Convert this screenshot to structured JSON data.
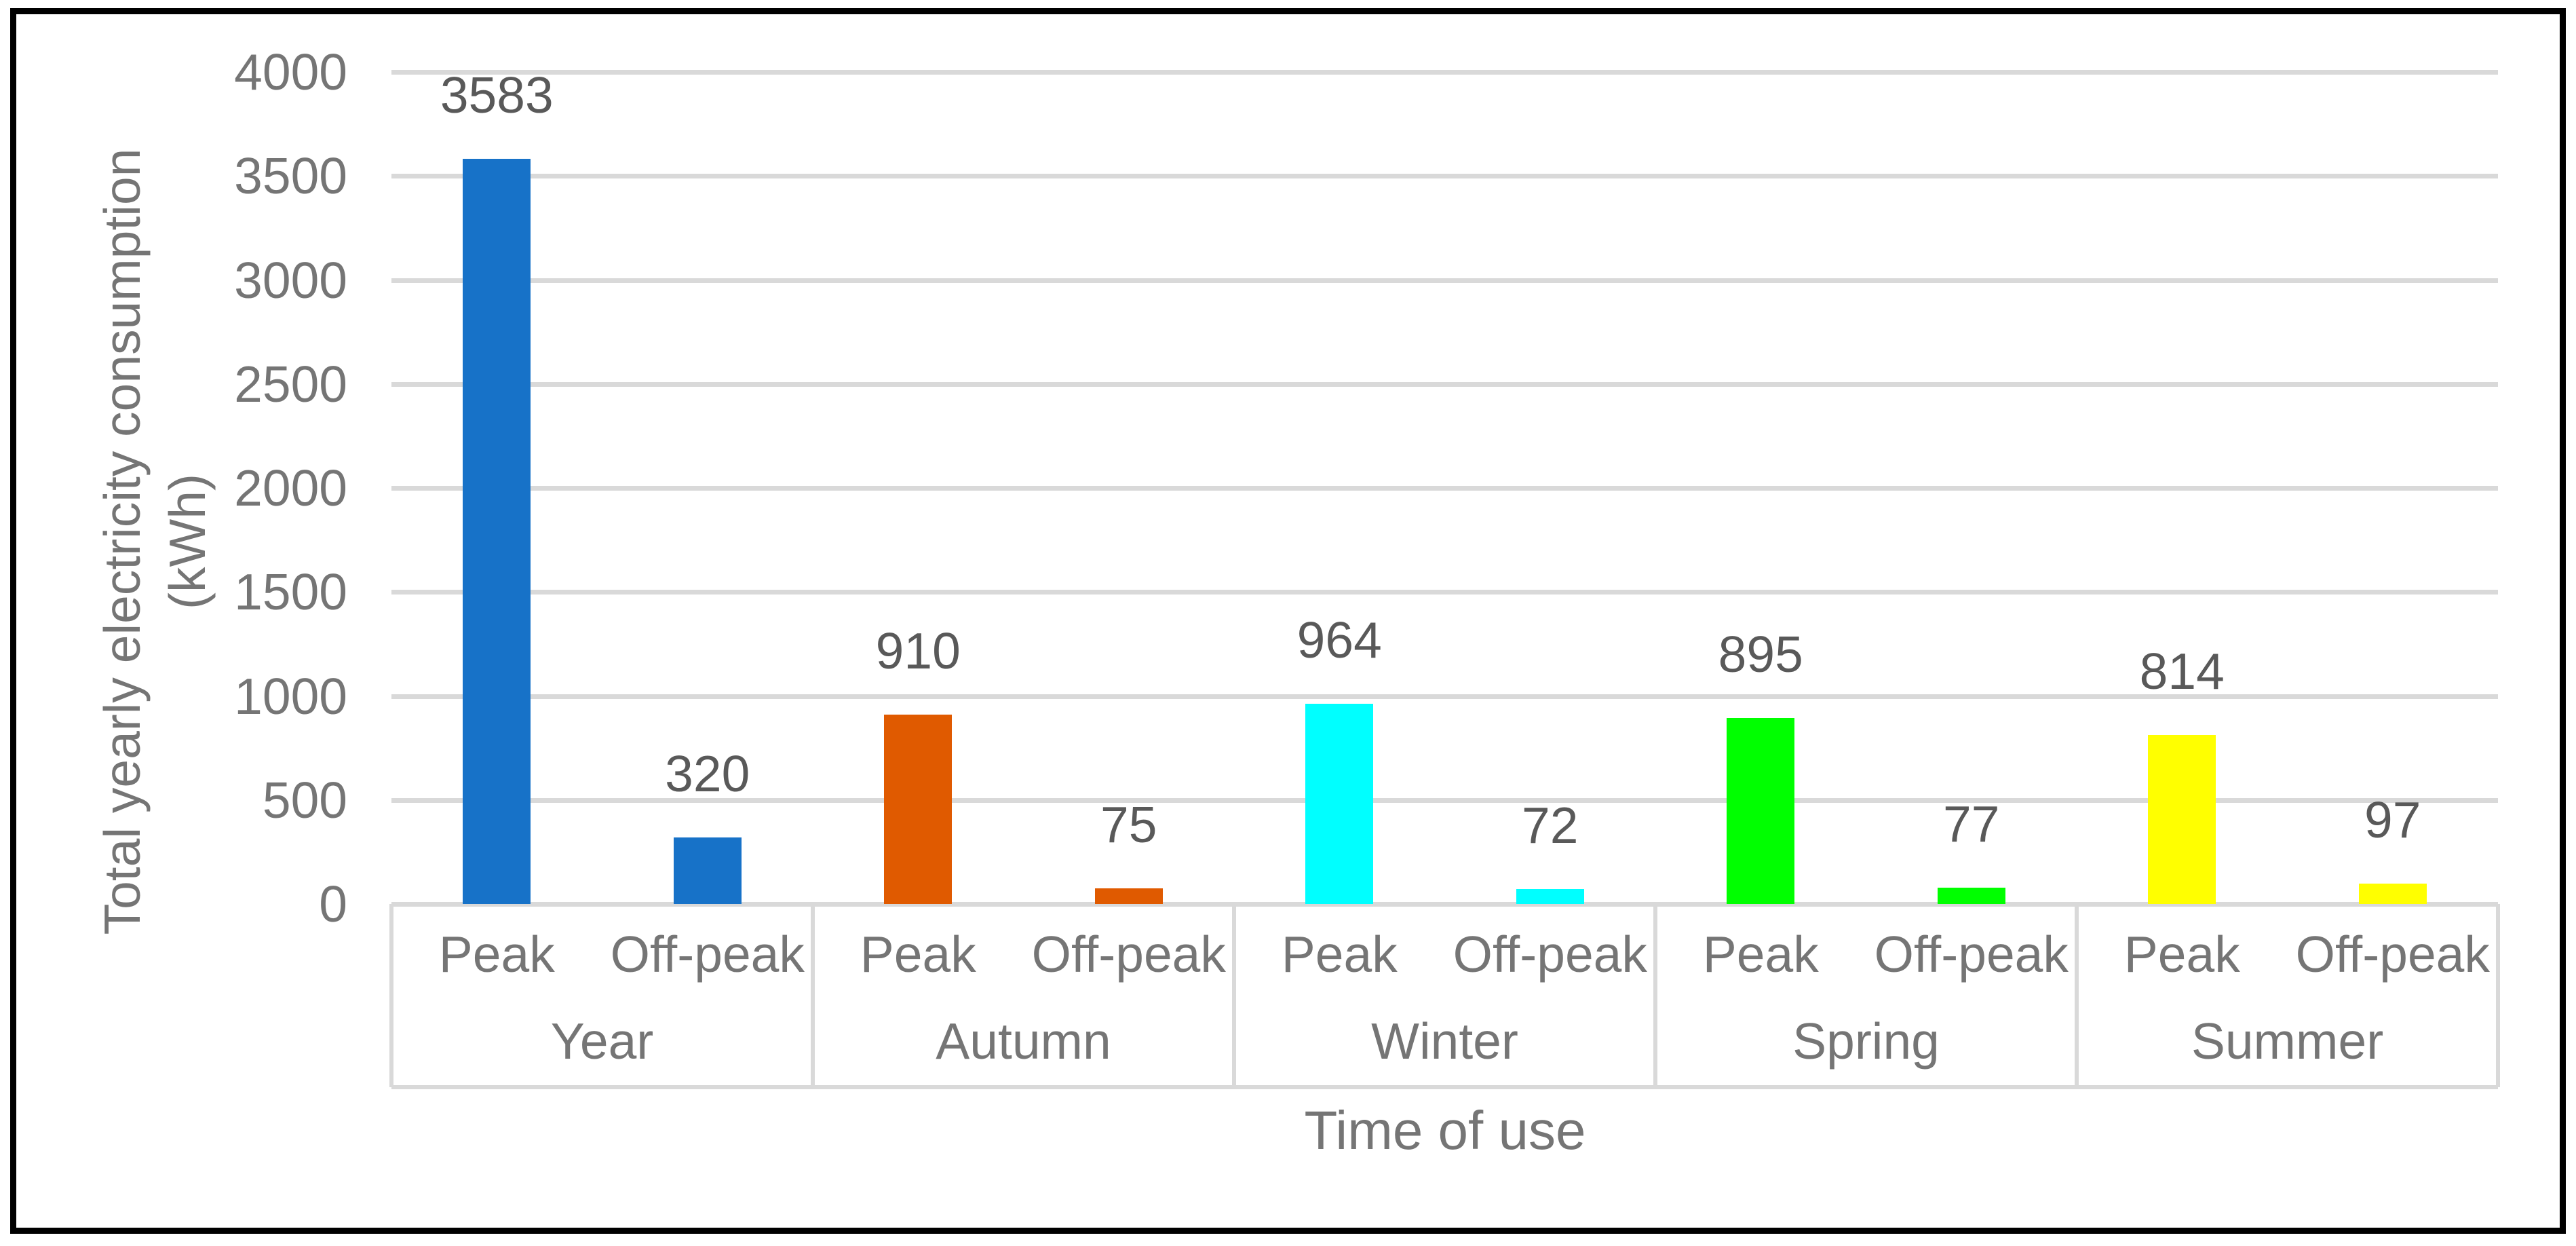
{
  "window": {
    "background_color": "#FFFFFF",
    "frame_color": "#000000"
  },
  "chart_data": {
    "type": "bar",
    "title": "",
    "xlabel": "Time of use",
    "ylabel": "Total yearly electricity consumption (kWh)",
    "ylabel_lines": [
      "Total yearly electricity consumption",
      "(kWh)"
    ],
    "ylim": [
      0,
      4000
    ],
    "ytick_step": 500,
    "yticks": [
      4000,
      3500,
      3000,
      2500,
      2000,
      1500,
      1000,
      500,
      0
    ],
    "grid": true,
    "legend": false,
    "bar_value_labels_shown": true,
    "axis_text_color": "#757575",
    "value_label_color": "#595959",
    "gridline_color": "#D9D9D9",
    "series_labels": [
      "Peak",
      "Off-peak"
    ],
    "categories": [
      "Year",
      "Autumn",
      "Winter",
      "Spring",
      "Summer"
    ],
    "groups": [
      {
        "category": "Year",
        "color": "#1772C8",
        "bars": [
          {
            "label": "Peak",
            "value": 3583
          },
          {
            "label": "Off-peak",
            "value": 320
          }
        ]
      },
      {
        "category": "Autumn",
        "color": "#E05A00",
        "bars": [
          {
            "label": "Peak",
            "value": 910
          },
          {
            "label": "Off-peak",
            "value": 75
          }
        ]
      },
      {
        "category": "Winter",
        "color": "#00FFFF",
        "bars": [
          {
            "label": "Peak",
            "value": 964
          },
          {
            "label": "Off-peak",
            "value": 72
          }
        ]
      },
      {
        "category": "Spring",
        "color": "#00FF00",
        "bars": [
          {
            "label": "Peak",
            "value": 895
          },
          {
            "label": "Off-peak",
            "value": 77
          }
        ]
      },
      {
        "category": "Summer",
        "color": "#FFFF00",
        "bars": [
          {
            "label": "Peak",
            "value": 814
          },
          {
            "label": "Off-peak",
            "value": 97
          }
        ]
      }
    ]
  }
}
